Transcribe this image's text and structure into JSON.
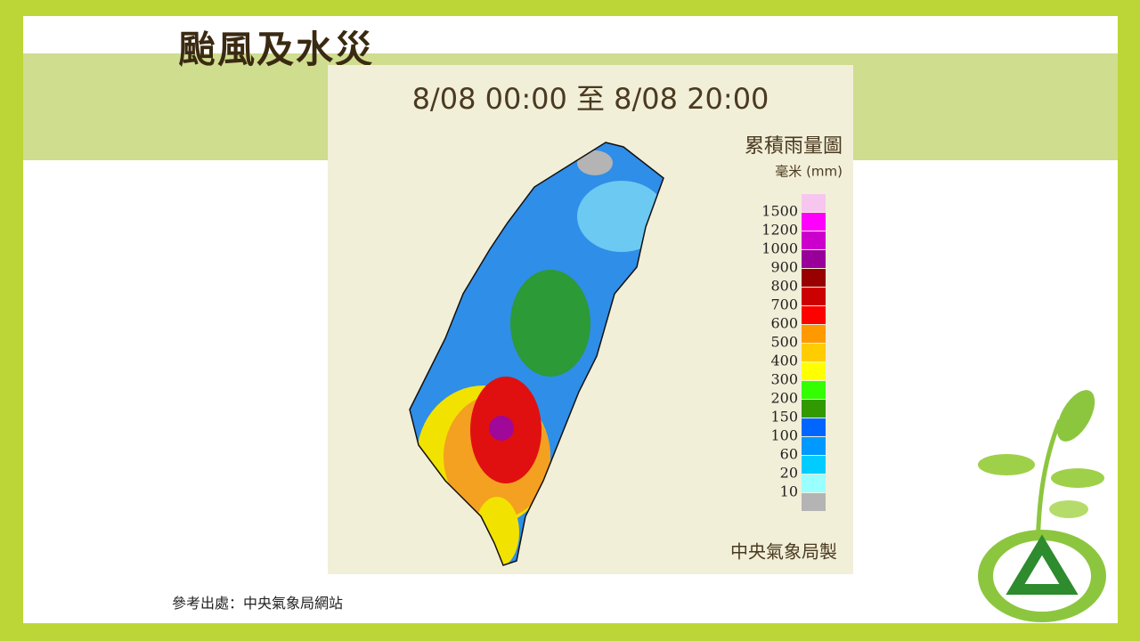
{
  "slide_title": "颱風及水災",
  "map": {
    "title": "8/08 00:00 至 8/08 20:00",
    "subtitle": "累積雨量圖",
    "unit": "毫米 (mm)",
    "credit": "中央氣象局製",
    "legend": {
      "levels": [
        1500,
        1200,
        1000,
        900,
        800,
        700,
        600,
        500,
        400,
        300,
        200,
        150,
        100,
        60,
        20,
        10
      ],
      "colors": [
        "#f7c6ef",
        "#ff00ff",
        "#cc00cc",
        "#990099",
        "#990000",
        "#cc0000",
        "#ff0000",
        "#ff9900",
        "#ffcc00",
        "#ffff00",
        "#33ff00",
        "#339900",
        "#0066ff",
        "#0099ff",
        "#00ccff",
        "#99ffff",
        "#b4b4b4"
      ]
    }
  },
  "source": "參考出處：中央氣象局網站"
}
